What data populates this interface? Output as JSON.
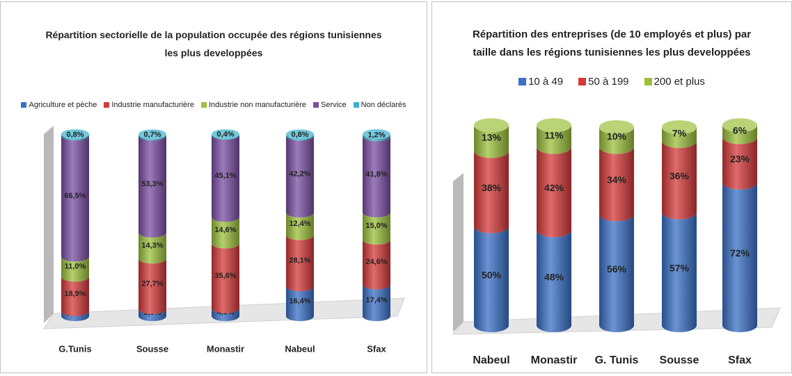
{
  "chart_data": [
    {
      "type": "bar",
      "stacked": true,
      "title": "Répartition sectorielle de  la population occupée  des régions tunisiennes les plus developpées",
      "categories": [
        "G.Tunis",
        "Sousse",
        "Monastir",
        "Nabeul",
        "Sfax"
      ],
      "series": [
        {
          "name": "Agriculture et pèche",
          "color": "#3a70c6",
          "values": [
            2.8,
            3.9,
            4.3,
            16.4,
            17.4
          ],
          "value_labels": [
            "2,8%",
            "3,9%",
            "4,3%",
            "16,4%",
            "17,4%"
          ]
        },
        {
          "name": "Industrie manufacturière",
          "color": "#d5393a",
          "values": [
            18.9,
            27.7,
            35.6,
            28.1,
            24.6
          ],
          "value_labels": [
            "18,9%",
            "27,7%",
            "35,6%",
            "28,1%",
            "24,6%"
          ]
        },
        {
          "name": "Industrie non manufacturière",
          "color": "#9cc03c",
          "values": [
            11.0,
            14.3,
            14.6,
            12.4,
            15.0
          ],
          "value_labels": [
            "11,0%",
            "14,3%",
            "14,6%",
            "12,4%",
            "15,0%"
          ]
        },
        {
          "name": "Service",
          "color": "#7b4fa3",
          "values": [
            66.5,
            53.3,
            45.1,
            42.2,
            41.8
          ],
          "value_labels": [
            "66,5%",
            "53,3%",
            "45,1%",
            "42,2%",
            "41,8%"
          ]
        },
        {
          "name": "Non déclarés",
          "color": "#39b1cb",
          "values": [
            0.8,
            0.7,
            0.4,
            0.8,
            1.2
          ],
          "value_labels": [
            "0,8%",
            "0,7%",
            "0,4%",
            "0,8%",
            "1,2%"
          ]
        }
      ]
    },
    {
      "type": "bar",
      "stacked": true,
      "title": "Répartition des entreprises (de 10 employés et plus) par taille dans les  régions tunisiennes les plus developpées",
      "categories": [
        "Nabeul",
        "Monastir",
        "G. Tunis",
        "Sousse",
        "Sfax"
      ],
      "series": [
        {
          "name": "10 à 49",
          "color": "#3a70c6",
          "values": [
            50,
            48,
            56,
            57,
            72
          ],
          "value_labels": [
            "50%",
            "48%",
            "56%",
            "57%",
            "72%"
          ]
        },
        {
          "name": "50 à 199",
          "color": "#d5393a",
          "values": [
            38,
            42,
            34,
            36,
            23
          ],
          "value_labels": [
            "38%",
            "42%",
            "34%",
            "36%",
            "23%"
          ]
        },
        {
          "name": "200 et plus",
          "color": "#9cc03c",
          "values": [
            13,
            11,
            10,
            7,
            6
          ],
          "value_labels": [
            "13%",
            "11%",
            "10%",
            "7%",
            "6%"
          ]
        }
      ]
    }
  ]
}
